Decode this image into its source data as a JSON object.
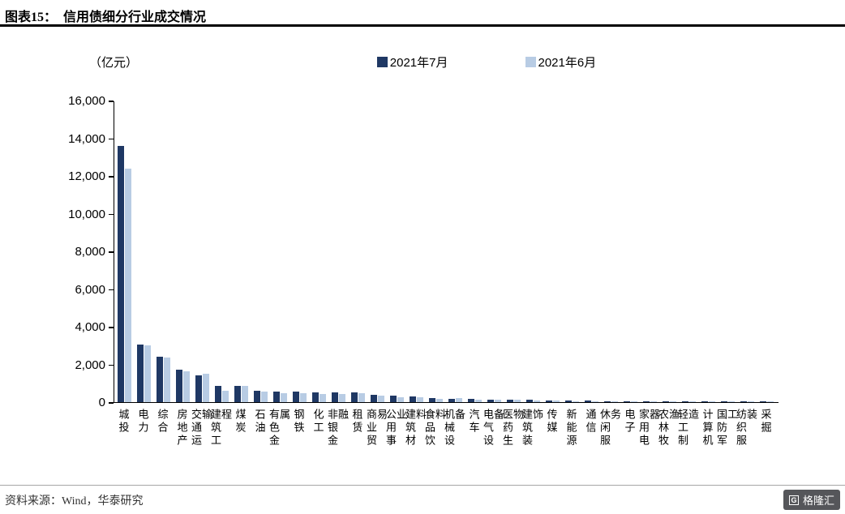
{
  "header": {
    "title_prefix": "图表15：",
    "title_main": "信用债细分行业成交情况"
  },
  "chart_data": {
    "type": "bar",
    "title": "信用债细分行业成交情况",
    "unit_label": "（亿元）",
    "grid": false,
    "legend_position": "top",
    "ylim": [
      0,
      16000
    ],
    "ytick_labels": [
      "0",
      "2,000",
      "4,000",
      "6,000",
      "8,000",
      "10,000",
      "12,000",
      "14,000",
      "16,000"
    ],
    "categories": [
      "城投",
      "电力",
      "综合",
      "房地产",
      "交通运输",
      "建筑工程",
      "煤炭",
      "石油",
      "有色金属",
      "钢铁",
      "化工",
      "非银金融",
      "租赁",
      "商业贸易",
      "公用事业",
      "建筑材料",
      "食品饮料",
      "机械设备",
      "汽车",
      "电气设备",
      "医药生物",
      "建筑装饰",
      "传媒",
      "新能源",
      "通信",
      "休闲服务",
      "电子",
      "家用电器",
      "农林牧渔",
      "轻工制造",
      "计算机",
      "国防军工",
      "纺织服装",
      "采掘"
    ],
    "series": [
      {
        "name": "2021年7月",
        "color": "#1F3864",
        "values": [
          13600,
          3050,
          2400,
          1700,
          1400,
          860,
          880,
          620,
          560,
          540,
          520,
          510,
          500,
          390,
          330,
          290,
          210,
          190,
          180,
          150,
          130,
          120,
          90,
          80,
          70,
          50,
          45,
          40,
          30,
          25,
          18,
          12,
          8,
          5
        ]
      },
      {
        "name": "2021年6月",
        "color": "#B8CCE4",
        "values": [
          12400,
          3000,
          2350,
          1630,
          1500,
          590,
          850,
          550,
          480,
          470,
          450,
          440,
          480,
          330,
          270,
          240,
          160,
          210,
          150,
          130,
          120,
          100,
          70,
          60,
          60,
          40,
          35,
          30,
          25,
          18,
          12,
          8,
          5,
          3
        ]
      }
    ]
  },
  "footer": {
    "source": "资料来源：Wind，华泰研究",
    "logo_text": "格隆汇",
    "logo_icon": "G"
  }
}
